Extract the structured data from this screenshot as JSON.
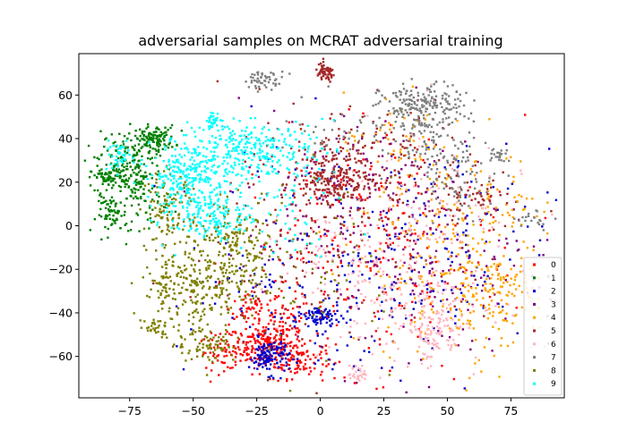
{
  "chart_data": {
    "type": "scatter",
    "title": "adversarial samples on MCRAT adversarial training",
    "xlabel": "",
    "ylabel": "",
    "xlim": [
      -95,
      96
    ],
    "ylim": [
      -79,
      79
    ],
    "x_ticks": [
      -75,
      -50,
      -25,
      0,
      25,
      50,
      75
    ],
    "y_ticks": [
      -60,
      -40,
      -20,
      0,
      20,
      40,
      60
    ],
    "x_tick_labels": [
      "−75",
      "−50",
      "−25",
      "0",
      "25",
      "50",
      "75"
    ],
    "y_tick_labels": [
      "−60",
      "−40",
      "−20",
      "0",
      "20",
      "40",
      "60"
    ],
    "grid": false,
    "legend_position": "lower-right",
    "series": [
      {
        "name": "0",
        "color": "#ff0000",
        "clusters": [
          [
            -22,
            -55,
            6,
            5,
            180
          ],
          [
            -8,
            -62,
            5,
            4,
            80
          ],
          [
            -38,
            -58,
            5,
            4,
            60
          ],
          [
            -28,
            -38,
            4,
            4,
            40
          ],
          [
            -15,
            -45,
            6,
            6,
            60
          ],
          [
            5,
            -20,
            20,
            30,
            140
          ],
          [
            30,
            -10,
            25,
            30,
            120
          ]
        ]
      },
      {
        "name": "1",
        "color": "#008000",
        "clusters": [
          [
            -78,
            28,
            5,
            8,
            160
          ],
          [
            -84,
            22,
            3,
            2,
            50
          ],
          [
            -65,
            40,
            4,
            3,
            120
          ],
          [
            -82,
            5,
            3,
            4,
            60
          ],
          [
            -70,
            15,
            5,
            8,
            80
          ]
        ]
      },
      {
        "name": "2",
        "color": "#0000cd",
        "clusters": [
          [
            -20,
            -60,
            4,
            4,
            120
          ],
          [
            0,
            -42,
            4,
            3,
            80
          ],
          [
            10,
            -20,
            25,
            30,
            140
          ],
          [
            40,
            -15,
            25,
            25,
            120
          ],
          [
            -30,
            -25,
            8,
            8,
            30
          ]
        ]
      },
      {
        "name": "3",
        "color": "#800080",
        "clusters": [
          [
            25,
            0,
            30,
            30,
            150
          ],
          [
            55,
            -20,
            20,
            20,
            100
          ],
          [
            10,
            20,
            20,
            15,
            60
          ]
        ]
      },
      {
        "name": "4",
        "color": "#ffa500",
        "clusters": [
          [
            55,
            -25,
            15,
            20,
            180
          ],
          [
            70,
            -30,
            8,
            10,
            80
          ],
          [
            45,
            0,
            20,
            25,
            100
          ],
          [
            30,
            40,
            10,
            10,
            40
          ],
          [
            75,
            10,
            6,
            8,
            30
          ]
        ]
      },
      {
        "name": "5",
        "color": "#a52a2a",
        "clusters": [
          [
            5,
            22,
            6,
            6,
            180
          ],
          [
            15,
            30,
            15,
            12,
            120
          ],
          [
            20,
            0,
            30,
            30,
            180
          ],
          [
            2,
            70,
            2,
            2,
            60
          ],
          [
            60,
            13,
            6,
            4,
            40
          ],
          [
            -10,
            -10,
            15,
            20,
            60
          ]
        ]
      },
      {
        "name": "6",
        "color": "#ffb6c1",
        "clusters": [
          [
            35,
            -30,
            15,
            15,
            150
          ],
          [
            45,
            -50,
            6,
            6,
            100
          ],
          [
            15,
            -68,
            2,
            2,
            30
          ],
          [
            10,
            -15,
            12,
            12,
            60
          ],
          [
            40,
            10,
            20,
            20,
            60
          ]
        ]
      },
      {
        "name": "7",
        "color": "#808080",
        "clusters": [
          [
            40,
            55,
            8,
            5,
            180
          ],
          [
            45,
            40,
            8,
            8,
            80
          ],
          [
            55,
            20,
            8,
            8,
            60
          ],
          [
            -22,
            67,
            4,
            2,
            50
          ],
          [
            85,
            3,
            4,
            2,
            20
          ],
          [
            70,
            33,
            2,
            2,
            20
          ],
          [
            20,
            45,
            20,
            8,
            60
          ]
        ]
      },
      {
        "name": "8",
        "color": "#808000",
        "clusters": [
          [
            -50,
            -30,
            10,
            12,
            250
          ],
          [
            -60,
            5,
            5,
            10,
            120
          ],
          [
            -30,
            -15,
            8,
            10,
            120
          ],
          [
            -45,
            -55,
            6,
            4,
            60
          ],
          [
            -35,
            0,
            8,
            6,
            60
          ],
          [
            -65,
            -47,
            2,
            2,
            25
          ],
          [
            -62,
            -28,
            3,
            3,
            25
          ],
          [
            0,
            -20,
            15,
            20,
            60
          ]
        ]
      },
      {
        "name": "9",
        "color": "#00ffff",
        "clusters": [
          [
            -50,
            25,
            8,
            8,
            250
          ],
          [
            -28,
            35,
            8,
            6,
            180
          ],
          [
            -40,
            5,
            6,
            6,
            120
          ],
          [
            -55,
            10,
            6,
            8,
            80
          ],
          [
            -42,
            48,
            2,
            1.5,
            30
          ],
          [
            -10,
            35,
            8,
            8,
            60
          ],
          [
            -80,
            32,
            3,
            3,
            40
          ],
          [
            -15,
            10,
            12,
            12,
            60
          ]
        ]
      }
    ]
  }
}
